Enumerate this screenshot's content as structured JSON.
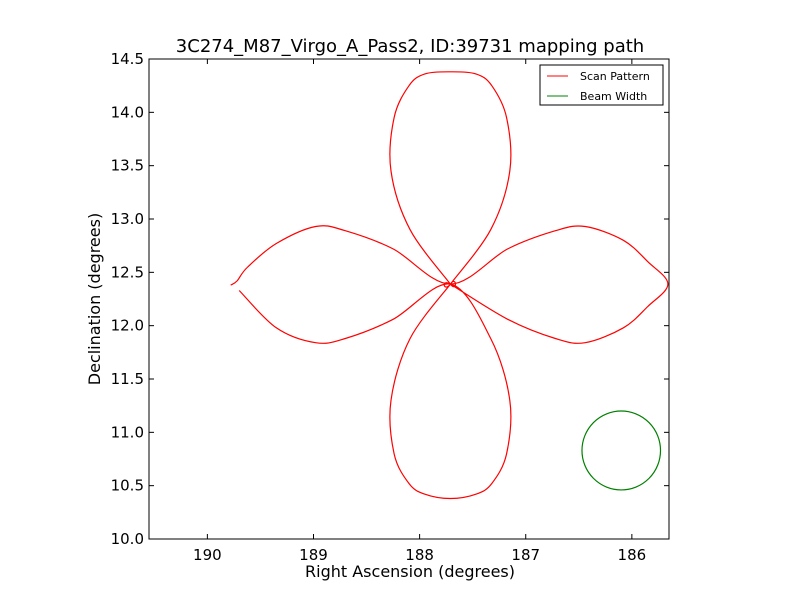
{
  "chart_data": {
    "type": "line",
    "title": "3C274_M87_Virgo_A_Pass2, ID:39731 mapping path",
    "xlabel": "Right Ascension (degrees)",
    "ylabel": "Declination (degrees)",
    "xlim": [
      190.55,
      185.65
    ],
    "ylim": [
      10.0,
      14.5
    ],
    "x_inverted": true,
    "xticks": [
      190,
      189,
      188,
      187,
      186
    ],
    "xtick_labels": [
      "190",
      "189",
      "188",
      "187",
      "186"
    ],
    "yticks": [
      10.0,
      10.5,
      11.0,
      11.5,
      12.0,
      12.5,
      13.0,
      13.5,
      14.0,
      14.5
    ],
    "ytick_labels": [
      "10.0",
      "10.5",
      "11.0",
      "11.5",
      "12.0",
      "12.5",
      "13.0",
      "13.5",
      "14.0",
      "14.5"
    ],
    "grid": false,
    "legend_position": "top-right",
    "series": [
      {
        "name": "Scan Pattern",
        "color": "#ff0000",
        "center": [
          187.71,
          12.39
        ],
        "x": [
          189.78,
          189.72,
          189.62,
          189.35,
          188.98,
          188.7,
          188.25,
          187.71,
          187.17,
          186.72,
          186.44,
          186.08,
          185.85,
          185.66,
          185.85,
          186.08,
          186.44,
          186.72,
          187.17,
          187.71,
          187.71,
          187.33,
          187.15,
          187.18,
          187.32,
          187.47,
          187.71,
          187.95,
          188.1,
          188.24,
          188.27,
          188.09,
          187.71,
          187.71,
          188.09,
          188.27,
          188.24,
          188.1,
          187.95,
          187.71,
          187.47,
          187.32,
          187.18,
          187.15,
          187.33,
          187.71,
          188.25,
          188.7,
          188.98,
          189.35,
          189.7
        ],
        "y": [
          12.38,
          12.42,
          12.55,
          12.77,
          12.93,
          12.89,
          12.72,
          12.39,
          12.72,
          12.89,
          12.93,
          12.8,
          12.6,
          12.39,
          12.18,
          11.98,
          11.84,
          11.88,
          12.06,
          12.39,
          12.39,
          12.9,
          13.45,
          13.95,
          14.25,
          14.36,
          14.38,
          14.36,
          14.25,
          13.95,
          13.45,
          12.9,
          12.39,
          12.39,
          11.88,
          11.3,
          10.8,
          10.52,
          10.42,
          10.38,
          10.42,
          10.52,
          10.8,
          11.3,
          11.88,
          12.39,
          12.06,
          11.88,
          11.84,
          11.98,
          12.33
        ]
      },
      {
        "name": "Beam Width",
        "color": "#008000",
        "center": [
          186.1,
          10.83
        ],
        "radius": 0.37
      }
    ]
  }
}
